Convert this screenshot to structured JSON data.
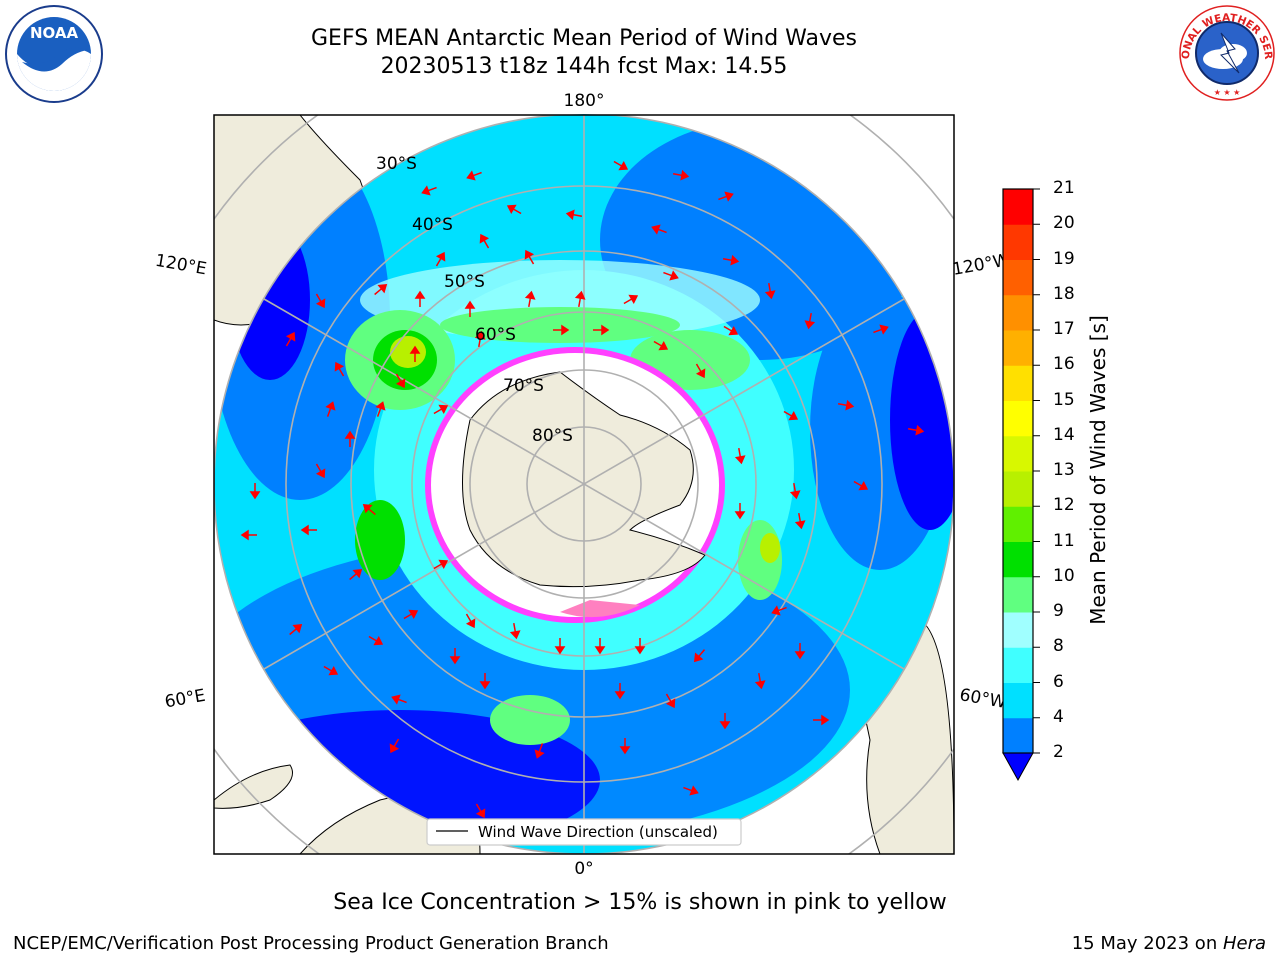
{
  "header": {
    "title_line1": "GEFS MEAN Antarctic Mean Period of Wind Waves",
    "title_line2": "20230513 t18z 144h fcst   Max: 14.55"
  },
  "logos": {
    "left": {
      "icon": "noaa-logo",
      "text": "NOAA"
    },
    "right": {
      "icon": "nws-logo",
      "text": "NATIONAL WEATHER SERVICE"
    }
  },
  "map": {
    "longitude_labels": {
      "top": "180°",
      "bottom": "0°",
      "left_upper": "120°E",
      "left_lower": "60°E",
      "right_upper": "120°W",
      "right_lower": "60°W"
    },
    "latitude_labels": [
      "30°S",
      "40°S",
      "50°S",
      "60°S",
      "70°S",
      "80°S"
    ],
    "legend_text": "Wind Wave Direction (unscaled)",
    "arrow_color": "#ff0000",
    "sea_ice_color": "#ff40ff",
    "land_color": "#efecdc"
  },
  "colorbar": {
    "label": "Mean Period of Wind Waves [s]",
    "ticks": [
      "2",
      "4",
      "6",
      "8",
      "9",
      "10",
      "11",
      "12",
      "13",
      "14",
      "15",
      "16",
      "17",
      "18",
      "19",
      "20",
      "21"
    ],
    "colors": [
      "#0080ff",
      "#00e0ff",
      "#40ffff",
      "#a0ffff",
      "#60ff80",
      "#00e000",
      "#60f000",
      "#b8f000",
      "#d8f800",
      "#ffff00",
      "#ffe000",
      "#ffb000",
      "#ff9000",
      "#ff6000",
      "#ff3800",
      "#ff0000"
    ],
    "extend_color": "#0000ff"
  },
  "note": "Sea Ice Concentration > 15% is shown in pink to yellow",
  "footer": {
    "left": "NCEP/EMC/Verification Post Processing Product Generation Branch",
    "right_date": "15 May 2023 on ",
    "right_host": "Hera"
  }
}
